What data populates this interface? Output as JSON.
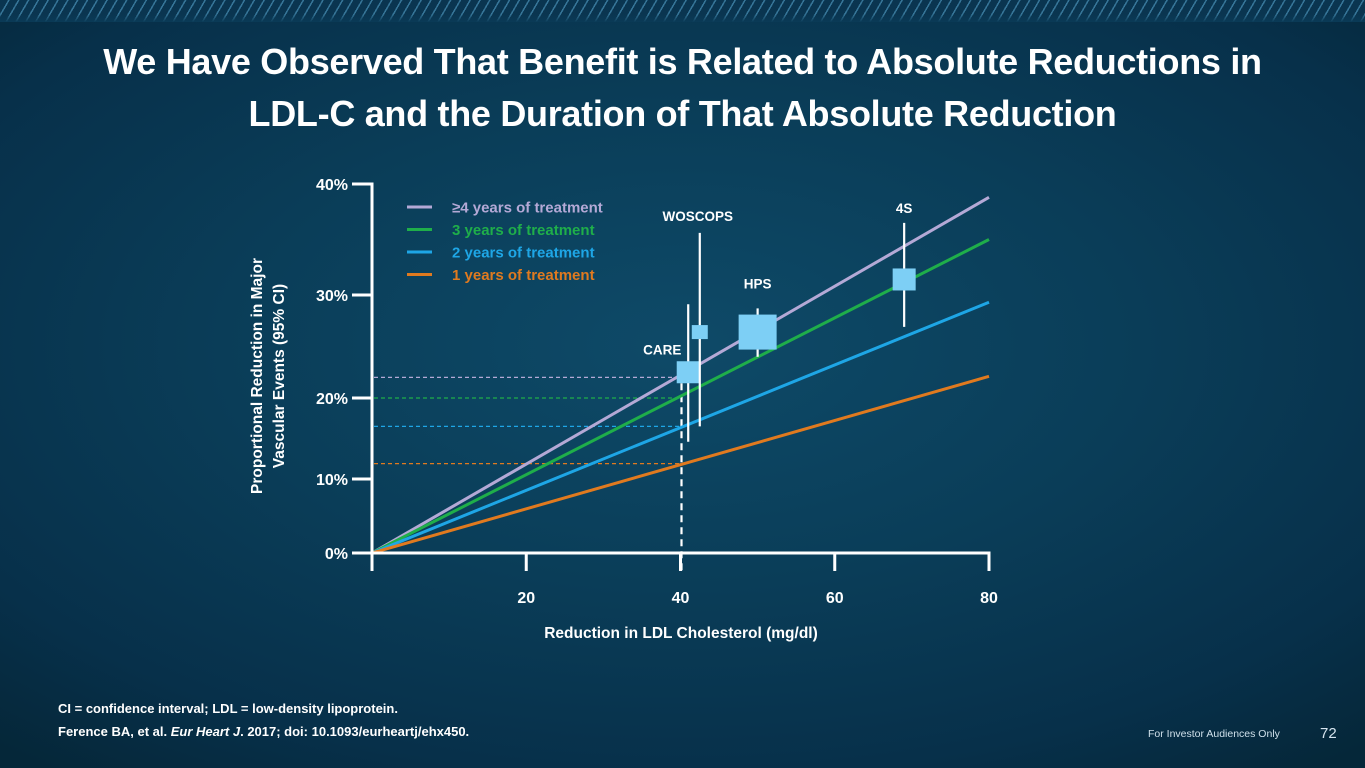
{
  "slide": {
    "title_line1": "We Have Observed That Benefit is Related to Absolute Reductions in",
    "title_line2": "LDL-C and the Duration of That Absolute Reduction",
    "footnote_abbrev": "CI = confidence interval; LDL = low-density lipoprotein.",
    "footnote_ref_prefix": "Ference BA, et al. ",
    "footnote_ref_journal": "Eur Heart J",
    "footnote_ref_suffix": ". 2017; doi: 10.1093/eurheartj/ehx450.",
    "investor_note": "For Investor Audiences Only",
    "page_number": "72"
  },
  "colors": {
    "axis": "#ffffff",
    "box": "#7dcff5",
    "ci": "#ffffff"
  },
  "chart_data": {
    "type": "line",
    "title": "",
    "xlabel": "Reduction in LDL Cholesterol (mg/dl)",
    "ylabel_line1": "Proportional Reduction in Major",
    "ylabel_line2": "Vascular Events (95% CI)",
    "xlim": [
      0,
      80
    ],
    "ylim": [
      0,
      40
    ],
    "x_ticks": [
      20,
      40,
      60,
      80
    ],
    "x_tick_labels": [
      "20",
      "40",
      "60",
      "80"
    ],
    "y_ticks": [
      0,
      10,
      20,
      30,
      40
    ],
    "y_tick_labels": [
      "0%",
      "10%",
      "20%",
      "30%",
      "40%"
    ],
    "grid": false,
    "legend_position": "top-left",
    "series": [
      {
        "name": "≥4 years of treatment",
        "color": "#b4a9d6",
        "x": [
          0,
          80
        ],
        "y": [
          0,
          38.8
        ]
      },
      {
        "name": "3 years of treatment",
        "color": "#1fae4a",
        "x": [
          0,
          80
        ],
        "y": [
          0,
          35.0
        ]
      },
      {
        "name": "2 years of treatment",
        "color": "#1ea6e6",
        "x": [
          0,
          80
        ],
        "y": [
          0,
          29.3
        ]
      },
      {
        "name": "1 years of treatment",
        "color": "#e07a1f",
        "x": [
          0,
          80
        ],
        "y": [
          0,
          22.1
        ]
      }
    ],
    "reference_x": 40,
    "reference_levels": [
      {
        "series": "≥4 years of treatment",
        "y": 22.0
      },
      {
        "series": "3 years of treatment",
        "y": 20.0
      },
      {
        "series": "2 years of treatment",
        "y": 16.5
      },
      {
        "series": "1 years of treatment",
        "y": 11.9
      }
    ],
    "trials": [
      {
        "name": "CARE",
        "x": 41,
        "y": 22.5,
        "ci_low": 14.6,
        "ci_high": 29.1,
        "weight": "medium"
      },
      {
        "name": "WOSCOPS",
        "x": 42.5,
        "y": 26.4,
        "ci_low": 16.5,
        "ci_high": 35.6,
        "weight": "small"
      },
      {
        "name": "HPS",
        "x": 50,
        "y": 26.4,
        "ci_low": 24.0,
        "ci_high": 28.7,
        "weight": "large"
      },
      {
        "name": "4S",
        "x": 69,
        "y": 31.4,
        "ci_low": 26.9,
        "ci_high": 36.5,
        "weight": "medium"
      }
    ]
  }
}
